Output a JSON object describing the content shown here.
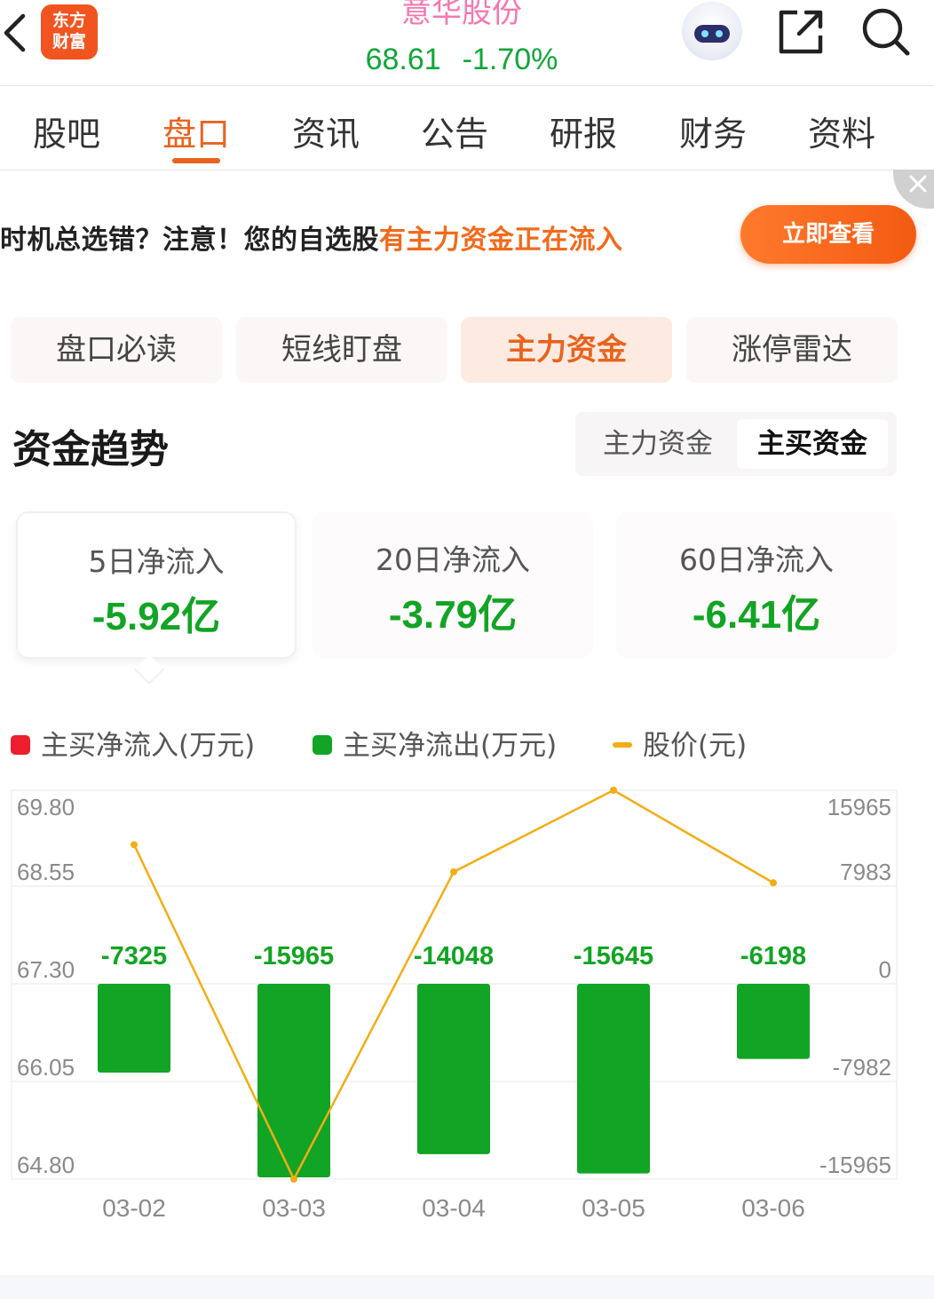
{
  "header": {
    "logo_line1": "东方",
    "logo_line2": "财富",
    "stock_name": "意华股份",
    "price": "68.61",
    "change": "-1.70%"
  },
  "nav": {
    "tabs": [
      {
        "label": "股吧"
      },
      {
        "label": "盘口",
        "active": true
      },
      {
        "label": "资讯"
      },
      {
        "label": "公告"
      },
      {
        "label": "研报"
      },
      {
        "label": "财务"
      },
      {
        "label": "资料"
      }
    ]
  },
  "banner": {
    "text_plain": "时机总选错？注意！您的自选股",
    "text_highlight": "有主力资金正在流入",
    "button_label": "立即查看"
  },
  "subtabs": [
    {
      "label": "盘口必读"
    },
    {
      "label": "短线盯盘"
    },
    {
      "label": "主力资金",
      "active": true
    },
    {
      "label": "涨停雷达"
    }
  ],
  "section": {
    "title": "资金趋势",
    "toggle": [
      {
        "label": "主力资金"
      },
      {
        "label": "主买资金",
        "active": true
      }
    ]
  },
  "cards": [
    {
      "label": "5日净流入",
      "value": "-5.92亿",
      "active": true
    },
    {
      "label": "20日净流入",
      "value": "-3.79亿"
    },
    {
      "label": "60日净流入",
      "value": "-6.41亿"
    }
  ],
  "legend": {
    "inflow": "主买净流入(万元)",
    "outflow": "主买净流出(万元)",
    "price": "股价(元)"
  },
  "colors": {
    "accent": "#e8631f",
    "down": "#12a424",
    "up": "#ee1e2e",
    "price_line": "#f3ad14"
  },
  "chart_data": {
    "type": "bar",
    "categories": [
      "03-02",
      "03-03",
      "03-04",
      "03-05",
      "03-06"
    ],
    "series": [
      {
        "name": "主买净流出(万元)",
        "type": "bar",
        "axis": "right",
        "values": [
          -7325,
          -15965,
          -14048,
          -15645,
          -6198
        ],
        "labels": [
          "-7325",
          "-15965",
          "-14048",
          "-15645",
          "-6198"
        ]
      },
      {
        "name": "股价(元)",
        "type": "line",
        "axis": "left",
        "values": [
          69.1,
          64.8,
          68.75,
          69.8,
          68.61
        ]
      }
    ],
    "left_axis": {
      "ticks": [
        "69.80",
        "68.55",
        "67.30",
        "66.05",
        "64.80"
      ],
      "ylim": [
        64.8,
        69.8
      ]
    },
    "right_axis": {
      "ticks": [
        "15965",
        "7983",
        "0",
        "-7982",
        "-15965"
      ],
      "ylim": [
        -15965,
        15965
      ]
    },
    "grid": true,
    "legend_position": "top"
  }
}
